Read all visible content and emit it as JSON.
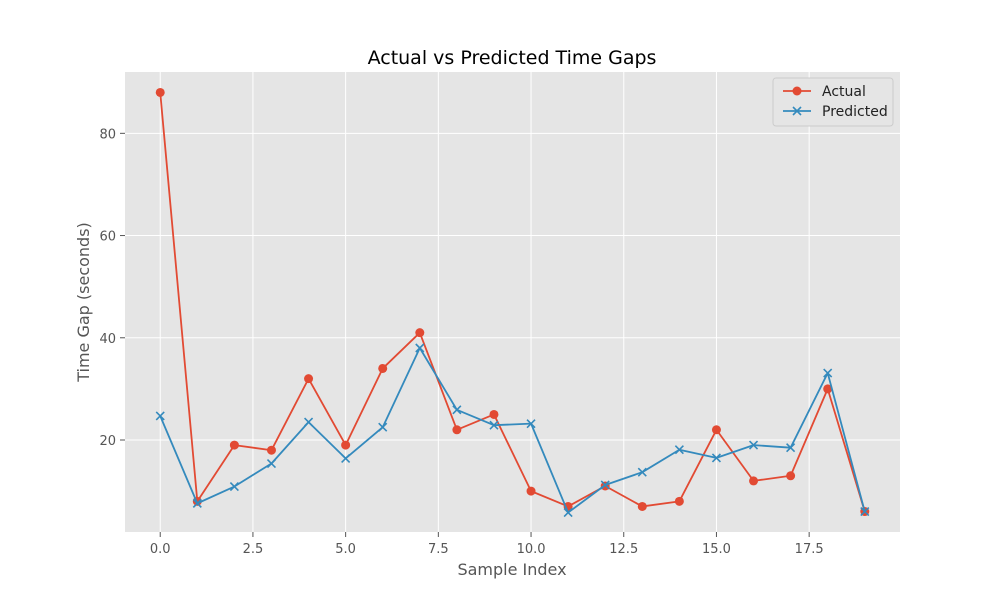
{
  "chart_data": {
    "type": "line",
    "title": "Actual vs Predicted Time Gaps",
    "xlabel": "Sample Index",
    "ylabel": "Time Gap (seconds)",
    "xlim": [
      -0.95,
      19.95
    ],
    "ylim": [
      2.0,
      92.0
    ],
    "x_ticks": [
      0.0,
      2.5,
      5.0,
      7.5,
      10.0,
      12.5,
      15.0,
      17.5
    ],
    "x_tick_labels": [
      "0.0",
      "2.5",
      "5.0",
      "7.5",
      "10.0",
      "12.5",
      "15.0",
      "17.5"
    ],
    "y_ticks": [
      20,
      40,
      60,
      80
    ],
    "y_tick_labels": [
      "20",
      "40",
      "60",
      "80"
    ],
    "grid": true,
    "legend_position": "top-right",
    "x": [
      0,
      1,
      2,
      3,
      4,
      5,
      6,
      7,
      8,
      9,
      10,
      11,
      12,
      13,
      14,
      15,
      16,
      17,
      18,
      19
    ],
    "series": [
      {
        "name": "Actual",
        "color": "#E24A33",
        "marker": "circle",
        "values": [
          88,
          8,
          19,
          18,
          32,
          19,
          34,
          41,
          22,
          25,
          10,
          7,
          11,
          7,
          8,
          22,
          12,
          13,
          30,
          6
        ]
      },
      {
        "name": "Predicted",
        "color": "#348ABD",
        "marker": "x",
        "values": [
          24.7,
          7.6,
          10.9,
          15.4,
          23.5,
          16.4,
          22.5,
          38.0,
          25.9,
          22.9,
          23.2,
          5.8,
          11.2,
          13.7,
          18.1,
          16.5,
          19.0,
          18.5,
          33.1,
          6.0
        ]
      }
    ]
  }
}
